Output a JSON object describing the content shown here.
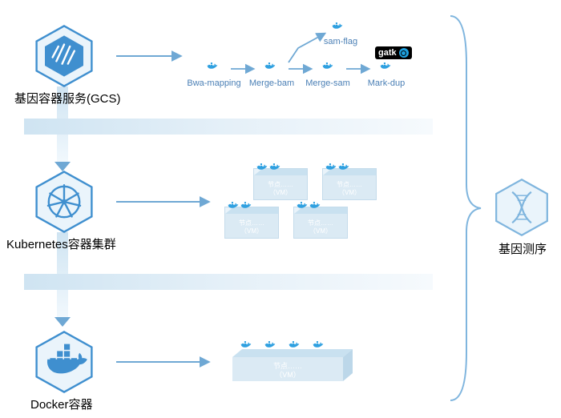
{
  "colors": {
    "stroke": "#7fb5de",
    "stroke_dark": "#3f8fcf",
    "fill_light": "#eaf4fb",
    "arrow": "#6fa8d4",
    "text_node": "#4a7fb5",
    "band_from": "#cfe4f2",
    "band_to": "#f6fafd",
    "vm_face": "#d9eaf5",
    "whale_blue": "#2fa0e0"
  },
  "left": {
    "gcs": {
      "label": "基因容器服务(GCS)"
    },
    "k8s": {
      "label": "Kubernetes容器集群"
    },
    "docker": {
      "label": "Docker容器"
    }
  },
  "right": {
    "dna": {
      "label": "基因测序"
    }
  },
  "pipeline": {
    "steps": [
      "Bwa-mapping",
      "Merge-bam",
      "Merge-sam",
      "Mark-dup"
    ],
    "branch": "sam-flag"
  },
  "vm": {
    "line1": "节点……",
    "line2": "（VM）"
  },
  "gatk": "gatk"
}
